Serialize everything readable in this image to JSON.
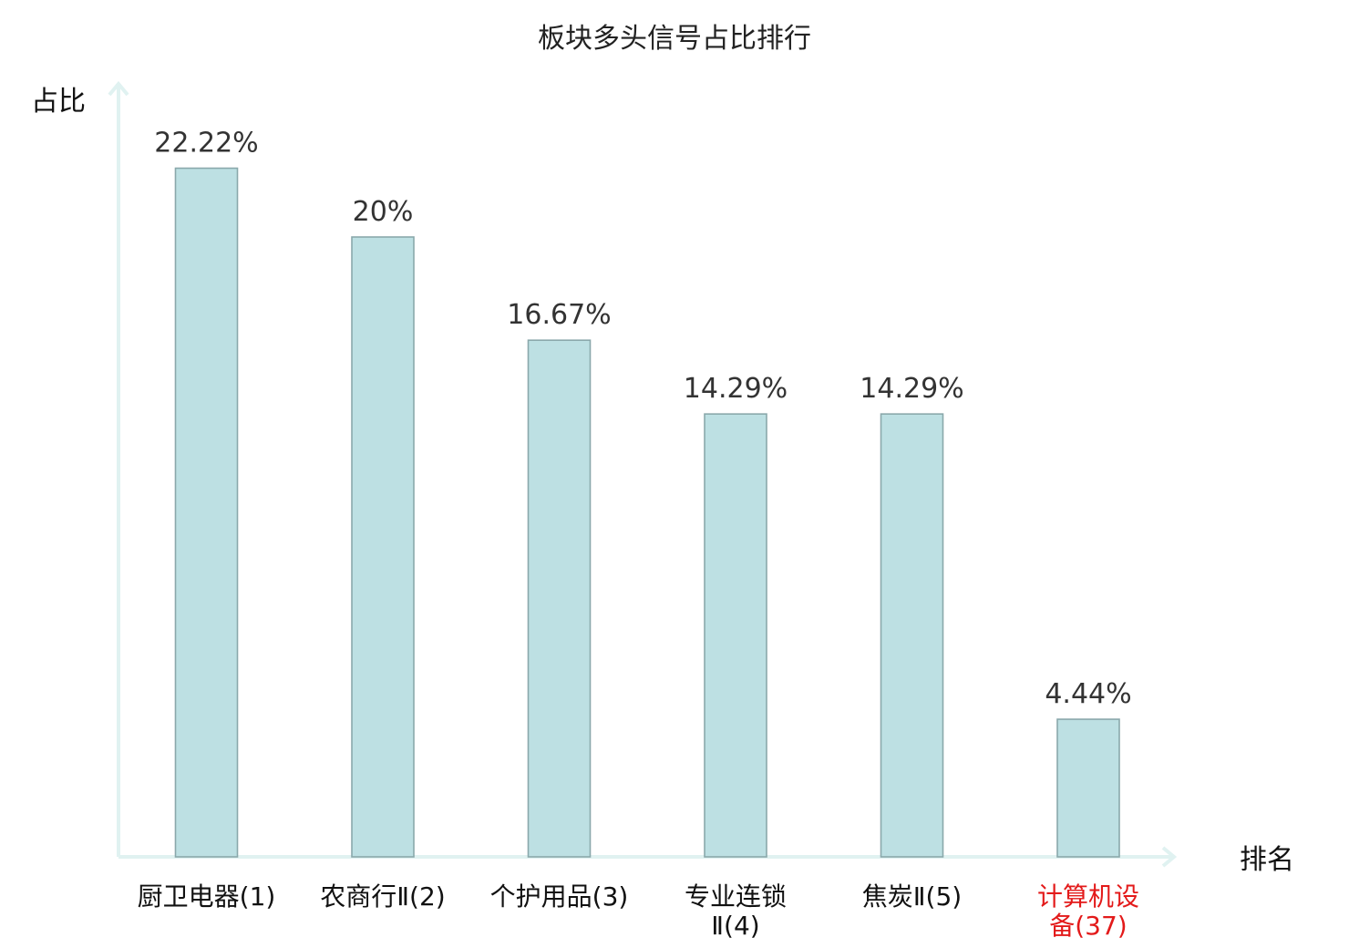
{
  "chart_data": {
    "type": "bar",
    "title": "板块多头信号占比排行",
    "xlabel": "排名",
    "ylabel": "占比",
    "categories": [
      [
        "厨卫电器(1)"
      ],
      [
        "农商行Ⅱ(2)"
      ],
      [
        "个护用品(3)"
      ],
      [
        "专业连锁",
        "Ⅱ(4)"
      ],
      [
        "焦炭Ⅱ(5)"
      ],
      [
        "计算机设",
        "备(37)"
      ]
    ],
    "values": [
      22.22,
      20,
      16.67,
      14.29,
      14.29,
      4.44
    ],
    "value_labels": [
      "22.22%",
      "20%",
      "16.67%",
      "14.29%",
      "14.29%",
      "4.44%"
    ],
    "highlight_index": 5,
    "ylim": [
      0,
      25
    ],
    "grid": false,
    "colors": {
      "bar": "#bde0e3",
      "bar_border": "#8aa8ab",
      "axis": "#e0f2f1",
      "highlight_text": "#e31a1a"
    }
  }
}
